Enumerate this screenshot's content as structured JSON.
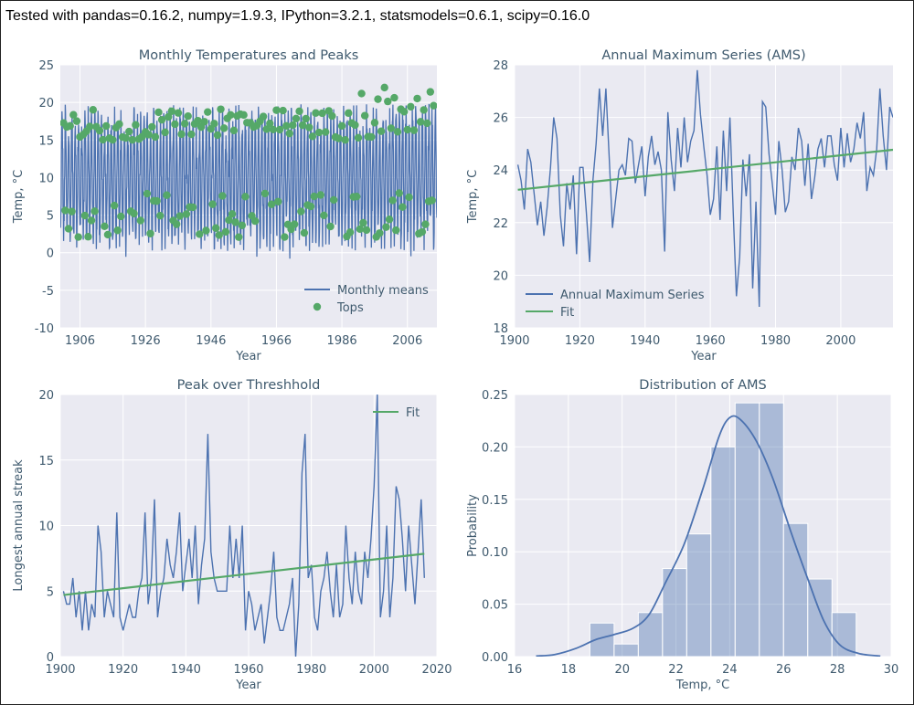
{
  "header": "Tested with pandas=0.16.2, numpy=1.9.3, IPython=3.2.1, statsmodels=0.6.1, scipy=0.16.0",
  "colors": {
    "background": "#eaeaf2",
    "grid": "#ffffff",
    "blue": "#4c72b0",
    "green": "#55a868",
    "text": "#3f5a6e",
    "hist": "#4c72b0"
  },
  "chart_data": [
    {
      "type": "line",
      "title": "Monthly Temperatures and Peaks",
      "xlabel": "Year",
      "ylabel": "Temp, °C",
      "xlim": [
        1900,
        2015
      ],
      "ylim": [
        -10,
        25
      ],
      "xticks": [
        1906,
        1926,
        1946,
        1966,
        1986,
        2006
      ],
      "yticks": [
        -10,
        -5,
        0,
        5,
        10,
        15,
        20,
        25
      ],
      "legend": [
        "Monthly means",
        "Tops"
      ],
      "legend_loc": "lower right",
      "series": [
        {
          "name": "Monthly means",
          "kind": "monthly",
          "mean": 10,
          "amplitude": 8,
          "range": [
            -7,
            24
          ]
        },
        {
          "name": "Tops",
          "kind": "markers",
          "upper_range": [
            15,
            22
          ],
          "lower_range": [
            2,
            8
          ]
        }
      ]
    },
    {
      "type": "line",
      "title": "Annual Maximum Series  (AMS)",
      "xlabel": "Year",
      "ylabel": "Temp, °C",
      "xlim": [
        1900,
        2016
      ],
      "ylim": [
        18,
        28
      ],
      "xticks": [
        1900,
        1920,
        1940,
        1960,
        1980,
        2000
      ],
      "yticks": [
        18,
        20,
        22,
        24,
        26,
        28
      ],
      "legend": [
        "Annual Maximum Series",
        "Fit"
      ],
      "legend_loc": "lower left",
      "x_start": 1901,
      "series": [
        {
          "name": "Annual Maximum Series",
          "values": [
            24.2,
            23.6,
            22.5,
            24.8,
            24.3,
            23.1,
            21.9,
            22.8,
            21.5,
            22.6,
            24.1,
            26,
            25.2,
            22.3,
            21.1,
            23.5,
            22.5,
            23.8,
            20.8,
            24.1,
            24.1,
            22.4,
            20.5,
            23.6,
            25,
            27.1,
            25.3,
            27.1,
            24.5,
            21.8,
            22.9,
            24,
            24.2,
            23.8,
            25.2,
            25.1,
            23.5,
            24.2,
            24.9,
            23,
            24.5,
            25.3,
            24.2,
            24.7,
            24,
            20.9,
            26.2,
            24.4,
            23.2,
            25.6,
            24.1,
            26,
            24.3,
            25.1,
            25.5,
            27.8,
            26.1,
            24.9,
            23.8,
            22.3,
            22.9,
            24.9,
            22.1,
            25.5,
            23.2,
            26,
            22.5,
            19.2,
            20.7,
            24.4,
            23,
            24.6,
            19.5,
            22.8,
            18.8,
            26.6,
            26.4,
            24.6,
            23.5,
            22.3,
            25.1,
            24,
            22.4,
            22.8,
            24.5,
            24,
            25.6,
            25.1,
            23.4,
            25,
            22.9,
            23.7,
            24.8,
            25.2,
            24.1,
            25.3,
            25.3,
            24.2,
            23.6,
            25.6,
            24.1,
            25.4,
            24.3,
            24.8,
            25.8,
            25.2,
            26.2,
            23.2,
            24.1,
            23.8,
            24.8,
            27.1,
            25.3,
            24,
            26.4,
            26
          ]
        },
        {
          "name": "Fit",
          "fit": [
            23.25,
            24.77
          ]
        }
      ]
    },
    {
      "type": "line",
      "title": "Peak over Threshhold",
      "xlabel": "Year",
      "ylabel": "Longest annual streak",
      "xlim": [
        1900,
        2020
      ],
      "ylim": [
        0,
        20
      ],
      "xticks": [
        1900,
        1920,
        1940,
        1960,
        1980,
        2000,
        2020
      ],
      "yticks": [
        0,
        5,
        10,
        15,
        20
      ],
      "legend": [
        "Fit"
      ],
      "legend_loc": "upper right",
      "x_start": 1901,
      "series": [
        {
          "name": "streak",
          "values": [
            5,
            4,
            4,
            6,
            3,
            5,
            2,
            5,
            2,
            4,
            3,
            10,
            8,
            3,
            5,
            4,
            3,
            11,
            3,
            2,
            3,
            4,
            3,
            3,
            5,
            6,
            11,
            4,
            6,
            12,
            3,
            5,
            6,
            9,
            7,
            6,
            8,
            11,
            5,
            7,
            9,
            6,
            10,
            4,
            7,
            9,
            17,
            8,
            6,
            5,
            5,
            5,
            5,
            10,
            6,
            9,
            6,
            10,
            2,
            5,
            4,
            2,
            3,
            4,
            1,
            3,
            5,
            8,
            3,
            2,
            2,
            3,
            4,
            6,
            0,
            4,
            14,
            17,
            6,
            7,
            3,
            2,
            5,
            6,
            8,
            5,
            3,
            7,
            3,
            4,
            10,
            6,
            4,
            8,
            5,
            4,
            8,
            6,
            9,
            13,
            20,
            3,
            5,
            10,
            3,
            6,
            13,
            12,
            9,
            5,
            10,
            7,
            4,
            8,
            12,
            6
          ]
        },
        {
          "name": "Fit",
          "fit": [
            4.7,
            7.85
          ]
        }
      ]
    },
    {
      "type": "bar",
      "title": "Distribution of AMS",
      "xlabel": "Temp, °C",
      "ylabel": "Probability",
      "xlim": [
        16,
        30
      ],
      "ylim": [
        0,
        0.25
      ],
      "xticks": [
        16,
        18,
        20,
        22,
        24,
        26,
        28,
        30
      ],
      "yticks": [
        0,
        0.05,
        0.1,
        0.15,
        0.2,
        0.25
      ],
      "ytick_labels": [
        "0.00",
        "0.05",
        "0.10",
        "0.15",
        "0.20",
        "0.25"
      ],
      "bin_start": 18.8,
      "bin_width": 0.9,
      "values": [
        0.032,
        0.012,
        0.042,
        0.084,
        0.117,
        0.2,
        0.242,
        0.242,
        0.127,
        0.074,
        0.042
      ],
      "kde": [
        [
          16.8,
          0.0005
        ],
        [
          17.5,
          0.002
        ],
        [
          18.3,
          0.008
        ],
        [
          19,
          0.016
        ],
        [
          19.7,
          0.021
        ],
        [
          20.4,
          0.027
        ],
        [
          21,
          0.04
        ],
        [
          21.6,
          0.07
        ],
        [
          22.3,
          0.107
        ],
        [
          23,
          0.16
        ],
        [
          23.6,
          0.21
        ],
        [
          24,
          0.228
        ],
        [
          24.4,
          0.226
        ],
        [
          25,
          0.205
        ],
        [
          25.6,
          0.17
        ],
        [
          26.3,
          0.117
        ],
        [
          26.9,
          0.074
        ],
        [
          27.5,
          0.034
        ],
        [
          28.1,
          0.011
        ],
        [
          28.8,
          0.003
        ],
        [
          29.6,
          0.0005
        ]
      ]
    }
  ]
}
